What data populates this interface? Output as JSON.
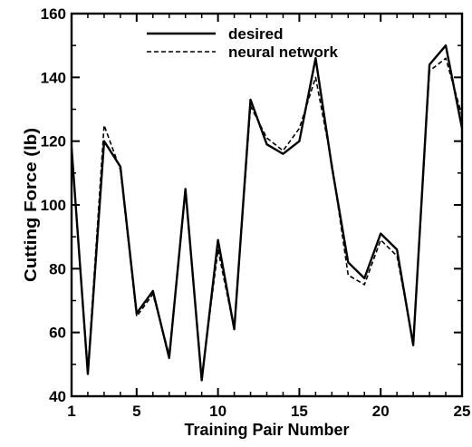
{
  "chart_data": {
    "type": "line",
    "title": "",
    "xlabel": "Training Pair Number",
    "ylabel": "Cutting Force (lb)",
    "xlim": [
      1,
      25
    ],
    "ylim": [
      40,
      160
    ],
    "x_ticks": [
      1,
      5,
      10,
      15,
      20,
      25
    ],
    "x_tick_labels": [
      "1",
      "5",
      "10",
      "15",
      "20",
      "25"
    ],
    "y_ticks": [
      40,
      60,
      80,
      100,
      120,
      140,
      160
    ],
    "y_tick_labels": [
      "40",
      "60",
      "80",
      "100",
      "120",
      "140",
      "160"
    ],
    "grid": false,
    "legend_position": "top-center",
    "x": [
      1,
      2,
      3,
      4,
      5,
      6,
      7,
      8,
      9,
      10,
      11,
      12,
      13,
      14,
      15,
      16,
      17,
      18,
      19,
      20,
      21,
      22,
      23,
      24,
      25
    ],
    "series": [
      {
        "name": "desired",
        "style": "solid",
        "color": "#000000",
        "values": [
          118,
          47,
          120,
          112,
          66,
          73,
          52,
          105,
          45,
          89,
          61,
          133,
          119,
          116,
          120,
          146,
          112,
          82,
          77,
          91,
          86,
          56,
          144,
          150,
          124
        ]
      },
      {
        "name": "neural network",
        "style": "dashed",
        "color": "#000000",
        "values": [
          118,
          48,
          125,
          111,
          65,
          72,
          53,
          104,
          46,
          86,
          61,
          131,
          121,
          117,
          124,
          140,
          113,
          78,
          75,
          89,
          84,
          57,
          142,
          146,
          128
        ]
      }
    ]
  }
}
